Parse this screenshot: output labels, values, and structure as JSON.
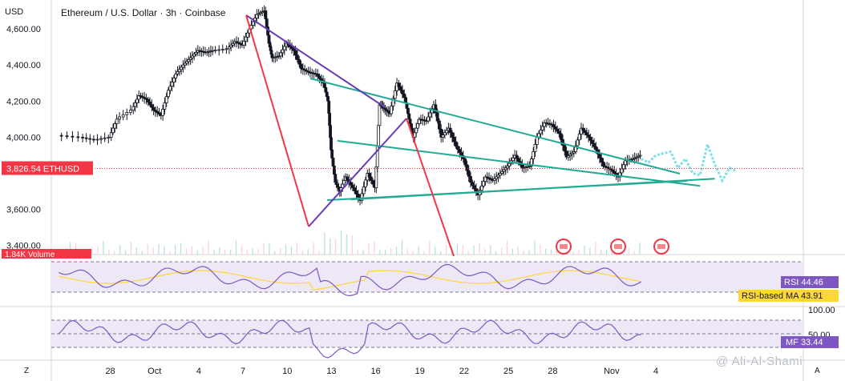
{
  "chart_data": {
    "type": "candlestick",
    "title": "Ethereum / U.S. Dollar · 3h · Coinbase",
    "currency": "USD",
    "symbol": "ETHUSD",
    "last_price": "3,826.54",
    "volume_label": "Volume",
    "volume_value": "1.84K",
    "y_ticks": [
      "4,600.00",
      "4,400.00",
      "4,200.00",
      "4,000.00",
      "3,600.00",
      "3,400.00"
    ],
    "y_tick_values": [
      4600,
      4400,
      4200,
      4000,
      3600,
      3400
    ],
    "x_ticks": [
      "28",
      "Oct",
      "4",
      "7",
      "10",
      "13",
      "16",
      "19",
      "22",
      "25",
      "28",
      "Nov",
      "4"
    ],
    "x_tick_days": [
      -3,
      0,
      3,
      6,
      9,
      12,
      15,
      18,
      21,
      24,
      27,
      31,
      34
    ],
    "price_path": [
      [
        -6.5,
        4010
      ],
      [
        -5,
        4000
      ],
      [
        -4,
        3985
      ],
      [
        -3,
        4000
      ],
      [
        -2.5,
        4100
      ],
      [
        -1.5,
        4150
      ],
      [
        -1,
        4230
      ],
      [
        -0.5,
        4210
      ],
      [
        0,
        4150
      ],
      [
        0.5,
        4120
      ],
      [
        1,
        4260
      ],
      [
        1.5,
        4350
      ],
      [
        2,
        4400
      ],
      [
        2.5,
        4440
      ],
      [
        3,
        4480
      ],
      [
        3.5,
        4470
      ],
      [
        4,
        4480
      ],
      [
        5,
        4490
      ],
      [
        5.5,
        4530
      ],
      [
        6,
        4510
      ],
      [
        6.5,
        4600
      ],
      [
        7,
        4680
      ],
      [
        7.5,
        4700
      ],
      [
        7.8,
        4520
      ],
      [
        8,
        4440
      ],
      [
        8.5,
        4450
      ],
      [
        9,
        4520
      ],
      [
        9.5,
        4480
      ],
      [
        10,
        4380
      ],
      [
        10.5,
        4360
      ],
      [
        11,
        4350
      ],
      [
        11.5,
        4300
      ],
      [
        11.8,
        4200
      ],
      [
        12,
        3930
      ],
      [
        12.3,
        3750
      ],
      [
        12.6,
        3700
      ],
      [
        13,
        3780
      ],
      [
        13.5,
        3720
      ],
      [
        14,
        3650
      ],
      [
        14.5,
        3800
      ],
      [
        15,
        3720
      ],
      [
        15.3,
        4180
      ],
      [
        15.6,
        4160
      ],
      [
        16,
        4130
      ],
      [
        16.5,
        4300
      ],
      [
        17,
        4220
      ],
      [
        17.3,
        4100
      ],
      [
        17.6,
        4000
      ],
      [
        18,
        4100
      ],
      [
        18.5,
        4090
      ],
      [
        19,
        4180
      ],
      [
        19.5,
        4000
      ],
      [
        20,
        4050
      ],
      [
        20.5,
        3950
      ],
      [
        21,
        3880
      ],
      [
        21.5,
        3750
      ],
      [
        22,
        3680
      ],
      [
        22.5,
        3780
      ],
      [
        23,
        3760
      ],
      [
        23.5,
        3800
      ],
      [
        24,
        3840
      ],
      [
        24.5,
        3900
      ],
      [
        25,
        3830
      ],
      [
        25.5,
        3840
      ],
      [
        26,
        4000
      ],
      [
        26.5,
        4080
      ],
      [
        27,
        4070
      ],
      [
        27.5,
        4020
      ],
      [
        28,
        3890
      ],
      [
        28.5,
        3920
      ],
      [
        29,
        4050
      ],
      [
        29.5,
        4000
      ],
      [
        30,
        3930
      ],
      [
        30.5,
        3840
      ],
      [
        31,
        3820
      ],
      [
        31.5,
        3780
      ],
      [
        32,
        3870
      ],
      [
        32.5,
        3880
      ],
      [
        33,
        3900
      ]
    ],
    "projection_path": [
      [
        33,
        3880
      ],
      [
        33.5,
        3860
      ],
      [
        34,
        3900
      ],
      [
        35,
        3920
      ],
      [
        35.5,
        3830
      ],
      [
        36,
        3880
      ],
      [
        36.5,
        3800
      ],
      [
        37,
        3790
      ],
      [
        37.5,
        3960
      ],
      [
        38,
        3850
      ],
      [
        38.5,
        3760
      ],
      [
        39,
        3830
      ],
      [
        39.5,
        3810
      ]
    ],
    "rsi": {
      "label": "RSI",
      "value": "44.46",
      "ma_label": "RSI-based MA",
      "ma_value": "43.91"
    },
    "mf": {
      "label": "MF",
      "value": "33.44",
      "ticks": [
        "100.00",
        "50.00"
      ]
    },
    "colors": {
      "up": "#26a69a",
      "down": "#ef5350",
      "candle": "#131722",
      "teal_line": "#22ab94",
      "purple_line": "#673ab7",
      "red_line": "#f23645",
      "rsi": "#7e57c2",
      "rsi_ma": "#fdd835",
      "band": "#ede7f6",
      "price_label": "#f23645",
      "projection": "#80deea"
    },
    "x_range": [
      -7,
      44
    ],
    "y_range": [
      3350,
      4760
    ]
  },
  "footer": {
    "corner_left": "Z",
    "corner_right": "A",
    "watermark": "@ Ali-Al-Shami"
  }
}
